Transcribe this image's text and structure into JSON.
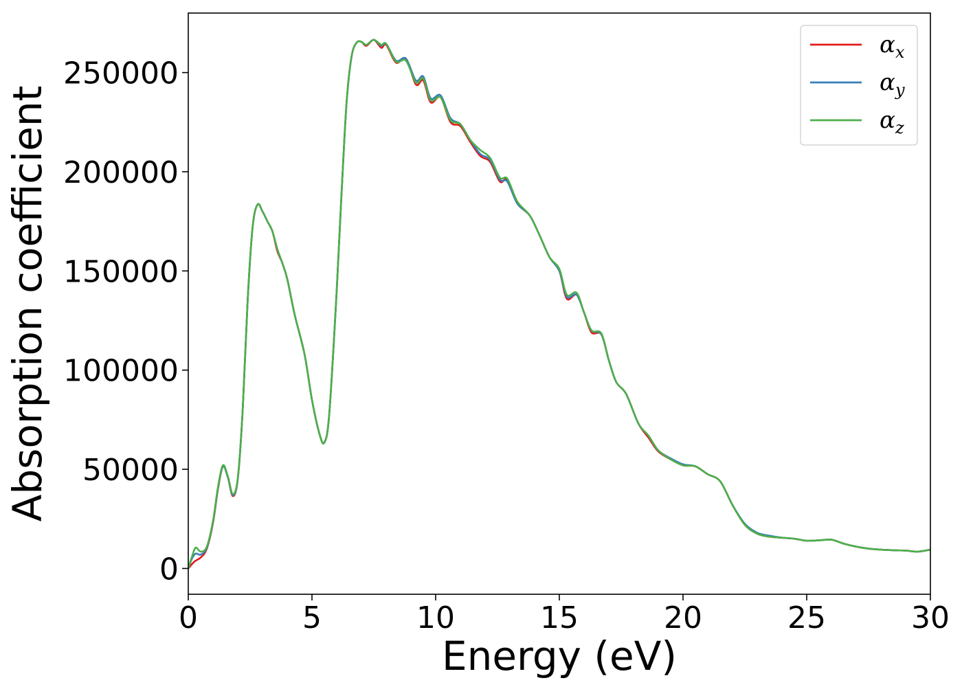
{
  "chart_data": {
    "type": "line",
    "title": "",
    "xlabel": "Energy (eV)",
    "ylabel": "Absorption coefficient",
    "xlim": [
      0,
      30
    ],
    "ylim": [
      -13000,
      280000
    ],
    "xticks": [
      0,
      5,
      10,
      15,
      20,
      25,
      30
    ],
    "yticks": [
      0,
      50000,
      100000,
      150000,
      200000,
      250000
    ],
    "xtick_labels": [
      "0",
      "5",
      "10",
      "15",
      "20",
      "25",
      "30"
    ],
    "ytick_labels": [
      "0",
      "50000",
      "100000",
      "150000",
      "200000",
      "250000"
    ],
    "grid": false,
    "legend": "top-right",
    "series": [
      {
        "name": "α_x",
        "symbol": "α",
        "subscript": "x",
        "color": "#e41a1c",
        "points": [
          [
            0,
            0
          ],
          [
            0.25,
            3500
          ],
          [
            0.5,
            5500
          ],
          [
            0.75,
            10000
          ],
          [
            1.0,
            23000
          ],
          [
            1.2,
            40000
          ],
          [
            1.4,
            51500
          ],
          [
            1.6,
            46000
          ],
          [
            1.8,
            36500
          ],
          [
            2.0,
            45000
          ],
          [
            2.2,
            80000
          ],
          [
            2.4,
            135000
          ],
          [
            2.6,
            172000
          ],
          [
            2.8,
            183500
          ],
          [
            3.0,
            180000
          ],
          [
            3.2,
            175000
          ],
          [
            3.4,
            170000
          ],
          [
            3.6,
            160000
          ],
          [
            3.8,
            154000
          ],
          [
            4.0,
            146000
          ],
          [
            4.3,
            128000
          ],
          [
            4.7,
            108000
          ],
          [
            5.0,
            85000
          ],
          [
            5.3,
            68000
          ],
          [
            5.5,
            63500
          ],
          [
            5.7,
            78000
          ],
          [
            6.0,
            140000
          ],
          [
            6.2,
            190000
          ],
          [
            6.4,
            235000
          ],
          [
            6.6,
            258000
          ],
          [
            6.8,
            265000
          ],
          [
            7.0,
            265500
          ],
          [
            7.2,
            263500
          ],
          [
            7.5,
            266500
          ],
          [
            7.8,
            262500
          ],
          [
            8.0,
            264000
          ],
          [
            8.4,
            255000
          ],
          [
            8.8,
            257000
          ],
          [
            9.2,
            244000
          ],
          [
            9.5,
            246000
          ],
          [
            9.8,
            235000
          ],
          [
            10.2,
            237500
          ],
          [
            10.6,
            225000
          ],
          [
            11.0,
            223000
          ],
          [
            11.4,
            215000
          ],
          [
            11.8,
            208000
          ],
          [
            12.2,
            205000
          ],
          [
            12.6,
            195000
          ],
          [
            12.9,
            196000
          ],
          [
            13.3,
            184000
          ],
          [
            13.8,
            178000
          ],
          [
            14.2,
            168000
          ],
          [
            14.6,
            157000
          ],
          [
            15.0,
            150000
          ],
          [
            15.3,
            136000
          ],
          [
            15.7,
            138000
          ],
          [
            16.0,
            129000
          ],
          [
            16.3,
            119000
          ],
          [
            16.7,
            118000
          ],
          [
            17.0,
            105000
          ],
          [
            17.3,
            94000
          ],
          [
            17.7,
            88000
          ],
          [
            18.2,
            73000
          ],
          [
            18.6,
            66000
          ],
          [
            19.0,
            59000
          ],
          [
            19.5,
            55000
          ],
          [
            20.0,
            52000
          ],
          [
            20.5,
            51500
          ],
          [
            21.0,
            47500
          ],
          [
            21.5,
            44000
          ],
          [
            22.0,
            32000
          ],
          [
            22.5,
            22000
          ],
          [
            23.0,
            17500
          ],
          [
            23.5,
            16000
          ],
          [
            24.0,
            15500
          ],
          [
            24.5,
            15000
          ],
          [
            25.0,
            14000
          ],
          [
            25.5,
            14200
          ],
          [
            26.0,
            14500
          ],
          [
            26.5,
            12500
          ],
          [
            27.0,
            11000
          ],
          [
            27.5,
            10000
          ],
          [
            28.0,
            9500
          ],
          [
            28.5,
            9200
          ],
          [
            29.0,
            9000
          ],
          [
            29.5,
            8500
          ],
          [
            30.0,
            9500
          ]
        ]
      },
      {
        "name": "α_y",
        "symbol": "α",
        "subscript": "y",
        "color": "#377eb8",
        "points": [
          [
            0,
            0
          ],
          [
            0.15,
            5000
          ],
          [
            0.3,
            7500
          ],
          [
            0.5,
            7000
          ],
          [
            0.75,
            10500
          ],
          [
            1.0,
            23500
          ],
          [
            1.2,
            40500
          ],
          [
            1.4,
            51500
          ],
          [
            1.6,
            46000
          ],
          [
            1.8,
            37000
          ],
          [
            2.0,
            45000
          ],
          [
            2.2,
            80000
          ],
          [
            2.4,
            135000
          ],
          [
            2.6,
            172000
          ],
          [
            2.8,
            183500
          ],
          [
            3.0,
            180000
          ],
          [
            3.2,
            175000
          ],
          [
            3.4,
            170000
          ],
          [
            3.6,
            161000
          ],
          [
            3.8,
            154000
          ],
          [
            4.0,
            146000
          ],
          [
            4.3,
            128000
          ],
          [
            4.7,
            108000
          ],
          [
            5.0,
            85000
          ],
          [
            5.3,
            68000
          ],
          [
            5.5,
            63500
          ],
          [
            5.7,
            78000
          ],
          [
            6.0,
            140000
          ],
          [
            6.2,
            190000
          ],
          [
            6.4,
            235000
          ],
          [
            6.6,
            258000
          ],
          [
            6.8,
            265000
          ],
          [
            7.0,
            265500
          ],
          [
            7.2,
            264000
          ],
          [
            7.5,
            266500
          ],
          [
            7.8,
            263500
          ],
          [
            8.0,
            264500
          ],
          [
            8.4,
            256000
          ],
          [
            8.8,
            257000
          ],
          [
            9.2,
            246000
          ],
          [
            9.5,
            248000
          ],
          [
            9.8,
            237000
          ],
          [
            10.2,
            238500
          ],
          [
            10.6,
            227000
          ],
          [
            11.0,
            224000
          ],
          [
            11.4,
            216000
          ],
          [
            11.8,
            209000
          ],
          [
            12.2,
            206000
          ],
          [
            12.6,
            196000
          ],
          [
            12.9,
            195000
          ],
          [
            13.3,
            184000
          ],
          [
            13.8,
            178000
          ],
          [
            14.2,
            168000
          ],
          [
            14.6,
            157000
          ],
          [
            15.0,
            150000
          ],
          [
            15.3,
            137000
          ],
          [
            15.7,
            138000
          ],
          [
            16.0,
            129000
          ],
          [
            16.3,
            120000
          ],
          [
            16.7,
            118000
          ],
          [
            17.0,
            105000
          ],
          [
            17.3,
            94000
          ],
          [
            17.7,
            88000
          ],
          [
            18.2,
            73000
          ],
          [
            18.6,
            67000
          ],
          [
            19.0,
            59500
          ],
          [
            19.5,
            55500
          ],
          [
            20.0,
            52500
          ],
          [
            20.5,
            51500
          ],
          [
            21.0,
            47500
          ],
          [
            21.5,
            44000
          ],
          [
            22.0,
            32000
          ],
          [
            22.5,
            22500
          ],
          [
            23.0,
            18000
          ],
          [
            23.5,
            16500
          ],
          [
            24.0,
            15500
          ],
          [
            24.5,
            15000
          ],
          [
            25.0,
            14000
          ],
          [
            25.5,
            14200
          ],
          [
            26.0,
            14500
          ],
          [
            26.5,
            12500
          ],
          [
            27.0,
            11000
          ],
          [
            27.5,
            10000
          ],
          [
            28.0,
            9500
          ],
          [
            28.5,
            9200
          ],
          [
            29.0,
            9000
          ],
          [
            29.5,
            8500
          ],
          [
            30.0,
            9500
          ]
        ]
      },
      {
        "name": "α_z",
        "symbol": "α",
        "subscript": "z",
        "color": "#4daf4a",
        "points": [
          [
            0,
            0
          ],
          [
            0.15,
            6000
          ],
          [
            0.3,
            10500
          ],
          [
            0.5,
            8500
          ],
          [
            0.75,
            11000
          ],
          [
            1.0,
            24000
          ],
          [
            1.2,
            41000
          ],
          [
            1.4,
            52000
          ],
          [
            1.6,
            46500
          ],
          [
            1.8,
            37500
          ],
          [
            2.0,
            45500
          ],
          [
            2.2,
            80000
          ],
          [
            2.4,
            135000
          ],
          [
            2.6,
            172000
          ],
          [
            2.8,
            183500
          ],
          [
            3.0,
            180000
          ],
          [
            3.2,
            175000
          ],
          [
            3.4,
            170000
          ],
          [
            3.6,
            161000
          ],
          [
            3.8,
            154000
          ],
          [
            4.0,
            146000
          ],
          [
            4.3,
            128000
          ],
          [
            4.7,
            108000
          ],
          [
            5.0,
            85000
          ],
          [
            5.3,
            68000
          ],
          [
            5.5,
            63500
          ],
          [
            5.7,
            78000
          ],
          [
            6.0,
            140000
          ],
          [
            6.2,
            190000
          ],
          [
            6.4,
            235000
          ],
          [
            6.6,
            258000
          ],
          [
            6.8,
            265000
          ],
          [
            7.0,
            265500
          ],
          [
            7.2,
            264000
          ],
          [
            7.5,
            266500
          ],
          [
            7.8,
            264000
          ],
          [
            8.0,
            264500
          ],
          [
            8.4,
            255500
          ],
          [
            8.8,
            256000
          ],
          [
            9.2,
            245000
          ],
          [
            9.5,
            247000
          ],
          [
            9.8,
            236000
          ],
          [
            10.2,
            237500
          ],
          [
            10.6,
            226000
          ],
          [
            11.0,
            224000
          ],
          [
            11.4,
            216000
          ],
          [
            11.8,
            211000
          ],
          [
            12.2,
            207000
          ],
          [
            12.6,
            197000
          ],
          [
            12.9,
            196500
          ],
          [
            13.3,
            185000
          ],
          [
            13.8,
            178000
          ],
          [
            14.2,
            168000
          ],
          [
            14.6,
            157000
          ],
          [
            15.0,
            151000
          ],
          [
            15.3,
            138000
          ],
          [
            15.7,
            139000
          ],
          [
            16.0,
            129000
          ],
          [
            16.3,
            120000
          ],
          [
            16.7,
            118500
          ],
          [
            17.0,
            105000
          ],
          [
            17.3,
            94000
          ],
          [
            17.7,
            88000
          ],
          [
            18.2,
            73000
          ],
          [
            18.6,
            67000
          ],
          [
            19.0,
            59500
          ],
          [
            19.5,
            55000
          ],
          [
            20.0,
            52000
          ],
          [
            20.5,
            51500
          ],
          [
            21.0,
            47500
          ],
          [
            21.5,
            44000
          ],
          [
            22.0,
            32000
          ],
          [
            22.5,
            22000
          ],
          [
            23.0,
            17500
          ],
          [
            23.5,
            16000
          ],
          [
            24.0,
            15500
          ],
          [
            24.5,
            15000
          ],
          [
            25.0,
            14000
          ],
          [
            25.5,
            14200
          ],
          [
            26.0,
            14500
          ],
          [
            26.5,
            12500
          ],
          [
            27.0,
            11000
          ],
          [
            27.5,
            10000
          ],
          [
            28.0,
            9500
          ],
          [
            28.5,
            9200
          ],
          [
            29.0,
            9000
          ],
          [
            29.5,
            8500
          ],
          [
            30.0,
            9500
          ]
        ]
      }
    ]
  }
}
